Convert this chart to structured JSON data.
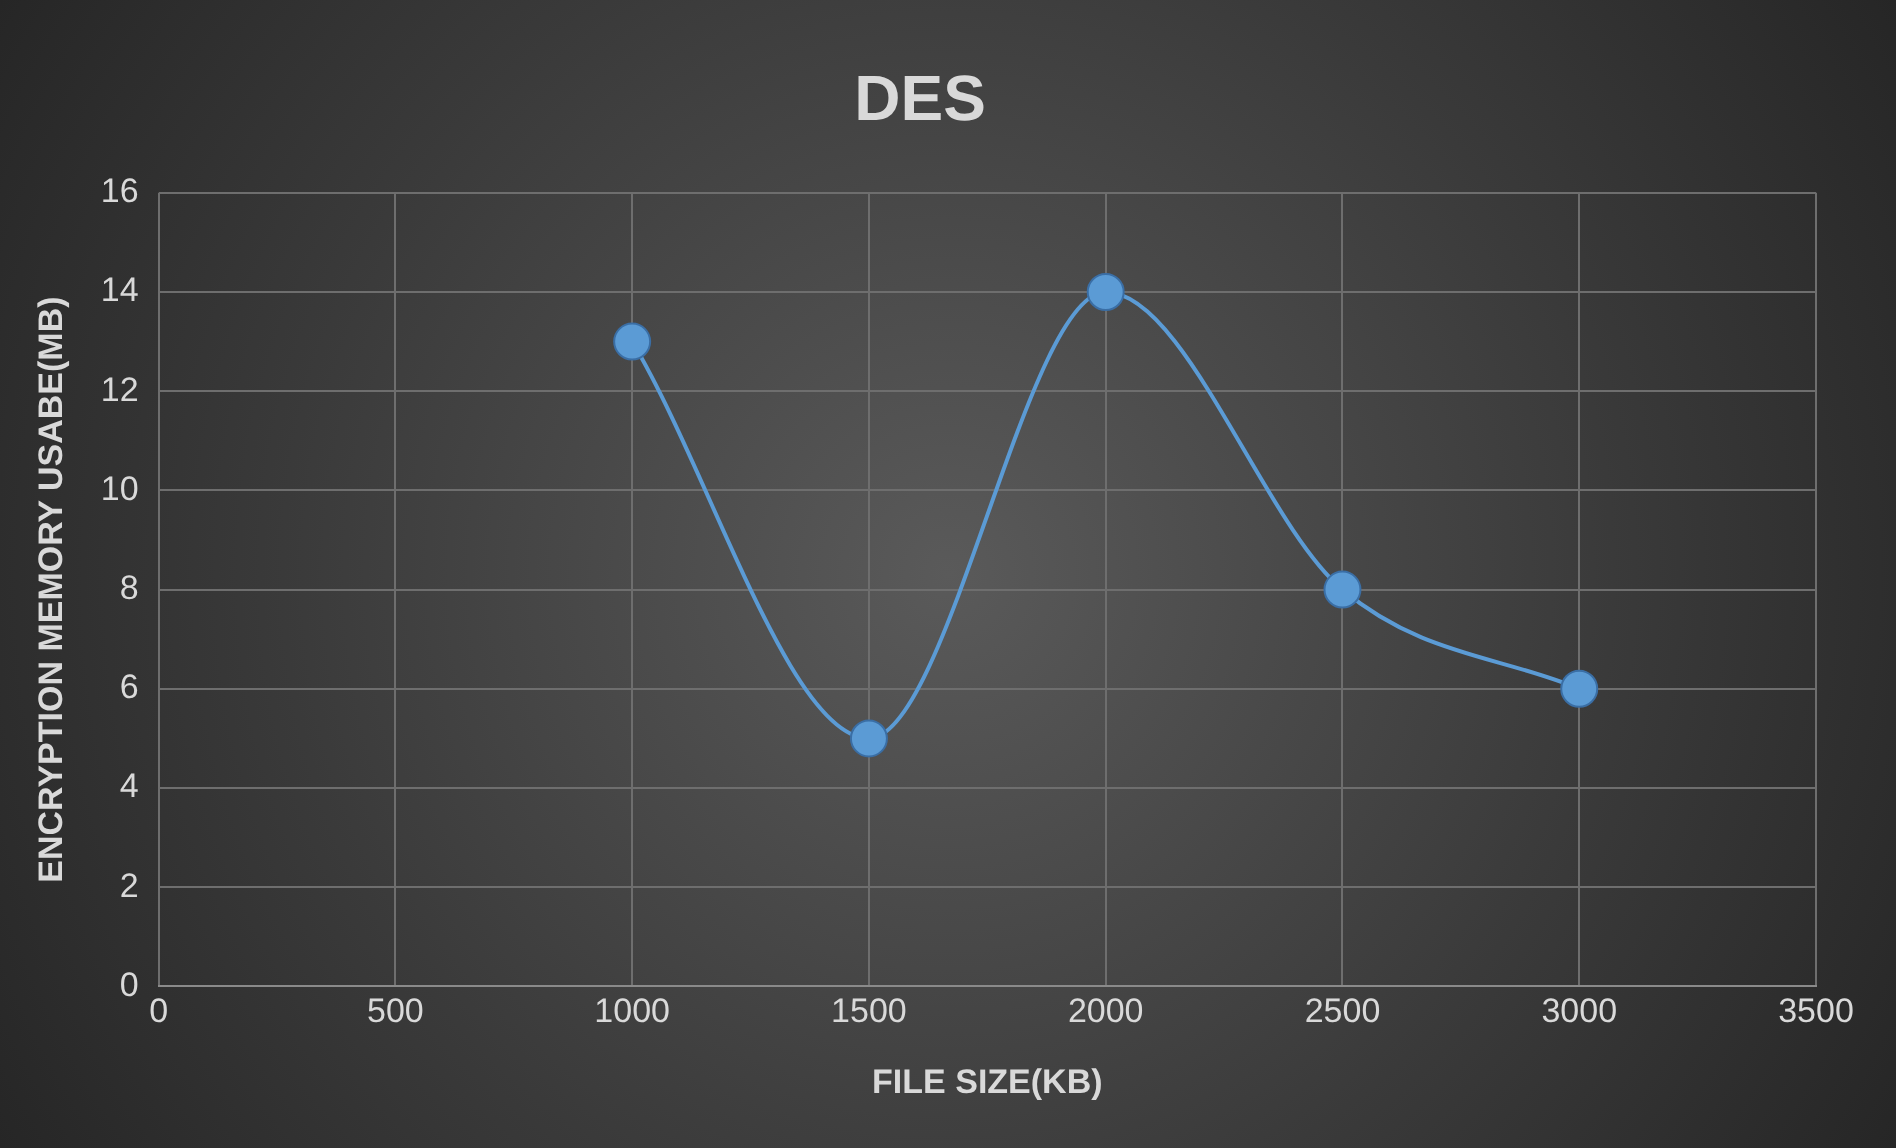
{
  "chart_data": {
    "type": "line",
    "title": "DES",
    "xlabel": "FILE SIZE(KB)",
    "ylabel": "ENCRYPTION MEMORY USABE(MB)",
    "x": [
      1000,
      1500,
      2000,
      2500,
      3000
    ],
    "series": [
      {
        "color": "#5b9bd5",
        "values": [
          13,
          5,
          14,
          8,
          6
        ]
      }
    ],
    "xlim": [
      0,
      3500
    ],
    "xticks": [
      0,
      500,
      1000,
      1500,
      2000,
      2500,
      3000,
      3500
    ],
    "ylim": [
      0,
      16
    ],
    "yticks": [
      0,
      2,
      4,
      6,
      8,
      10,
      12,
      14,
      16
    ],
    "grid": true,
    "legend": false,
    "marker": "circle",
    "line_style": "solid"
  }
}
